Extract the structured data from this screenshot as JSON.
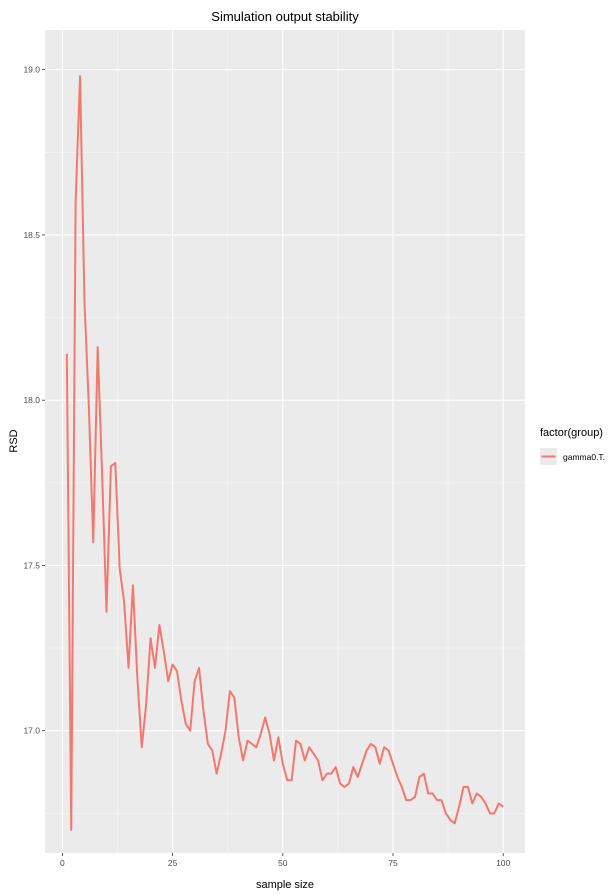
{
  "chart_data": {
    "type": "line",
    "title": "Simulation output stability",
    "xlabel": "sample size",
    "ylabel": "RSD",
    "xlim": [
      -3.95,
      104.95
    ],
    "ylim": [
      16.63,
      19.12
    ],
    "xticks": [
      0,
      25,
      50,
      75,
      100
    ],
    "yticks": [
      17.0,
      17.5,
      18.0,
      18.5,
      19.0
    ],
    "ytick_labels": [
      "17.0",
      "17.5",
      "18.0",
      "18.5",
      "19.0"
    ],
    "grid": true,
    "legend": {
      "title": "factor(group)",
      "position": "right"
    },
    "series": [
      {
        "name": "gamma0.T.",
        "color": "#F8766D",
        "x": [
          1,
          2,
          3,
          4,
          5,
          6,
          7,
          8,
          9,
          10,
          11,
          12,
          13,
          14,
          15,
          16,
          17,
          18,
          19,
          20,
          21,
          22,
          23,
          24,
          25,
          26,
          27,
          28,
          29,
          30,
          31,
          32,
          33,
          34,
          35,
          36,
          37,
          38,
          39,
          40,
          41,
          42,
          43,
          44,
          45,
          46,
          47,
          48,
          49,
          50,
          51,
          52,
          53,
          54,
          55,
          56,
          57,
          58,
          59,
          60,
          61,
          62,
          63,
          64,
          65,
          66,
          67,
          68,
          69,
          70,
          71,
          72,
          73,
          74,
          75,
          76,
          77,
          78,
          79,
          80,
          81,
          82,
          83,
          84,
          85,
          86,
          87,
          88,
          89,
          90,
          91,
          92,
          93,
          94,
          95,
          96,
          97,
          98,
          99,
          100
        ],
        "y": [
          18.14,
          16.7,
          18.6,
          18.98,
          18.3,
          17.98,
          17.57,
          18.16,
          17.78,
          17.36,
          17.8,
          17.81,
          17.49,
          17.39,
          17.19,
          17.44,
          17.16,
          16.95,
          17.08,
          17.28,
          17.19,
          17.32,
          17.24,
          17.15,
          17.2,
          17.18,
          17.09,
          17.02,
          17.0,
          17.15,
          17.19,
          17.06,
          16.96,
          16.94,
          16.87,
          16.93,
          17.0,
          17.12,
          17.1,
          16.98,
          16.91,
          16.97,
          16.96,
          16.95,
          16.99,
          17.04,
          16.99,
          16.91,
          16.98,
          16.9,
          16.85,
          16.85,
          16.97,
          16.96,
          16.91,
          16.95,
          16.93,
          16.91,
          16.85,
          16.87,
          16.87,
          16.89,
          16.84,
          16.83,
          16.84,
          16.89,
          16.86,
          16.9,
          16.94,
          16.96,
          16.95,
          16.9,
          16.95,
          16.94,
          16.9,
          16.86,
          16.83,
          16.79,
          16.79,
          16.8,
          16.86,
          16.87,
          16.81,
          16.81,
          16.79,
          16.79,
          16.75,
          16.73,
          16.72,
          16.77,
          16.83,
          16.83,
          16.78,
          16.81,
          16.8,
          16.78,
          16.75,
          16.75,
          16.78,
          16.77
        ]
      }
    ]
  }
}
